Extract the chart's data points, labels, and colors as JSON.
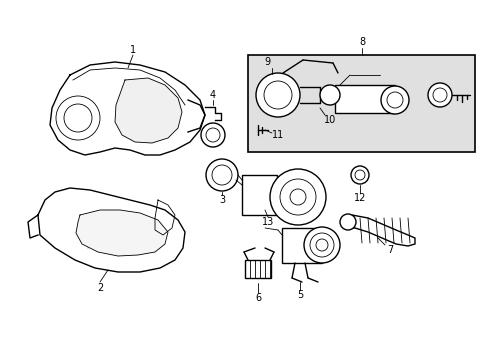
{
  "background_color": "#ffffff",
  "line_color": "#000000",
  "fig_width": 4.89,
  "fig_height": 3.6,
  "dpi": 100,
  "box_bg": "#e0e0e0",
  "lw_main": 1.0,
  "lw_thin": 0.6,
  "font_size": 7.0
}
